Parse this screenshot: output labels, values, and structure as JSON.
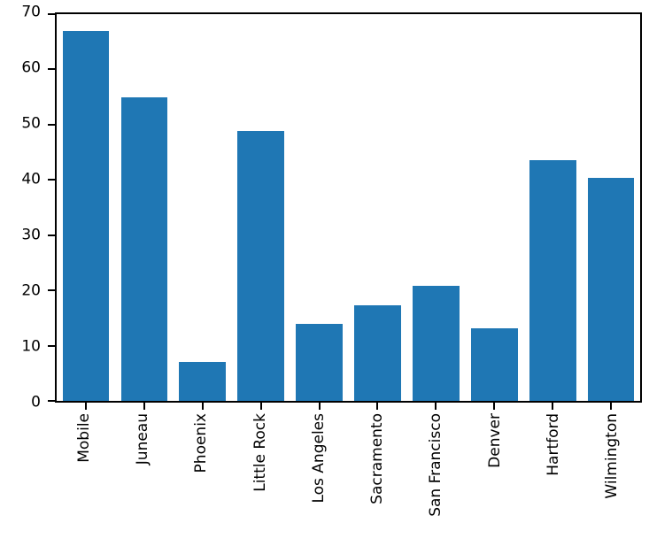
{
  "chart_data": {
    "type": "bar",
    "categories": [
      "Mobile",
      "Juneau",
      "Phoenix",
      "Little Rock",
      "Los Angeles",
      "Sacramento",
      "San Francisco",
      "Denver",
      "Hartford",
      "Wilmington"
    ],
    "values": [
      67,
      55,
      7,
      48.8,
      14,
      17.3,
      20.9,
      13.1,
      43.5,
      40.3
    ],
    "title": "",
    "xlabel": "",
    "ylabel": "",
    "ylim": [
      0,
      70
    ],
    "yticks": [
      0,
      10,
      20,
      30,
      40,
      50,
      60,
      70
    ],
    "bar_color": "#1f77b4",
    "axis_color": "#000000",
    "background_color": "#ffffff",
    "grid": false,
    "legend_position": "none",
    "x_tick_rotation": 90,
    "bar_width_fraction": 0.8
  }
}
